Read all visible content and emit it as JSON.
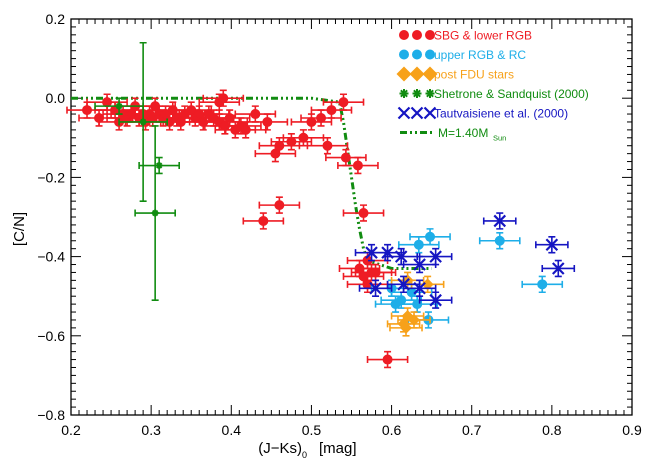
{
  "chart_data": {
    "type": "scatter",
    "title": "",
    "xlabel_main": "(J−Ks)",
    "xlabel_sub": "0",
    "xlabel_unit": "[mag]",
    "ylabel": "[C/N]",
    "xlim": [
      0.2,
      0.9
    ],
    "ylim": [
      -0.8,
      0.2
    ],
    "x_ticks": [
      0.2,
      0.3,
      0.4,
      0.5,
      0.6,
      0.7,
      0.8,
      0.9
    ],
    "y_ticks": [
      -0.8,
      -0.6,
      -0.4,
      -0.2,
      0.0,
      0.2
    ],
    "x_tick_labels": [
      "0.2",
      "0.3",
      "0.4",
      "0.5",
      "0.6",
      "0.7",
      "0.8",
      "0.9"
    ],
    "y_tick_labels": [
      "−0.8",
      "−0.6",
      "−0.4",
      "−0.2",
      "0.0",
      "0.2"
    ],
    "grid": false,
    "legend_position": "top-right",
    "series": [
      {
        "name": "SBG & lower RGB",
        "marker": "circle",
        "color": "#ee1c24",
        "xerr": 0.025,
        "yerr": 0.02,
        "points": [
          [
            0.22,
            -0.03
          ],
          [
            0.235,
            -0.05
          ],
          [
            0.245,
            -0.01
          ],
          [
            0.255,
            -0.03
          ],
          [
            0.26,
            -0.06
          ],
          [
            0.265,
            -0.04
          ],
          [
            0.27,
            -0.05
          ],
          [
            0.275,
            -0.04
          ],
          [
            0.28,
            -0.02
          ],
          [
            0.285,
            -0.05
          ],
          [
            0.29,
            -0.04
          ],
          [
            0.293,
            -0.06
          ],
          [
            0.298,
            -0.04
          ],
          [
            0.302,
            -0.05
          ],
          [
            0.305,
            -0.02
          ],
          [
            0.31,
            -0.04
          ],
          [
            0.315,
            -0.05
          ],
          [
            0.318,
            -0.04
          ],
          [
            0.323,
            -0.06
          ],
          [
            0.327,
            -0.03
          ],
          [
            0.332,
            -0.05
          ],
          [
            0.337,
            -0.06
          ],
          [
            0.342,
            -0.04
          ],
          [
            0.35,
            -0.03
          ],
          [
            0.355,
            -0.05
          ],
          [
            0.36,
            -0.04
          ],
          [
            0.365,
            -0.06
          ],
          [
            0.372,
            -0.04
          ],
          [
            0.378,
            -0.05
          ],
          [
            0.385,
            -0.06
          ],
          [
            0.392,
            -0.07
          ],
          [
            0.398,
            -0.05
          ],
          [
            0.405,
            -0.08
          ],
          [
            0.412,
            -0.07
          ],
          [
            0.418,
            -0.08
          ],
          [
            0.39,
            0.0
          ],
          [
            0.385,
            -0.01
          ],
          [
            0.43,
            -0.04
          ],
          [
            0.445,
            -0.06
          ],
          [
            0.455,
            -0.14
          ],
          [
            0.46,
            -0.12
          ],
          [
            0.475,
            -0.11
          ],
          [
            0.49,
            -0.1
          ],
          [
            0.5,
            -0.06
          ],
          [
            0.512,
            -0.05
          ],
          [
            0.525,
            -0.03
          ],
          [
            0.54,
            -0.01
          ],
          [
            0.52,
            -0.12
          ],
          [
            0.543,
            -0.15
          ],
          [
            0.558,
            -0.17
          ],
          [
            0.46,
            -0.27
          ],
          [
            0.44,
            -0.31
          ],
          [
            0.565,
            -0.29
          ],
          [
            0.57,
            -0.41
          ],
          [
            0.56,
            -0.43
          ],
          [
            0.565,
            -0.45
          ],
          [
            0.575,
            -0.44
          ],
          [
            0.58,
            -0.44
          ],
          [
            0.57,
            -0.47
          ],
          [
            0.595,
            -0.66
          ]
        ]
      },
      {
        "name": "upper RGB & RC",
        "marker": "circle",
        "color": "#1eaee8",
        "xerr": 0.025,
        "yerr": 0.02,
        "points": [
          [
            0.648,
            -0.35
          ],
          [
            0.634,
            -0.37
          ],
          [
            0.6,
            -0.48
          ],
          [
            0.612,
            -0.51
          ],
          [
            0.625,
            -0.49
          ],
          [
            0.632,
            -0.52
          ],
          [
            0.646,
            -0.56
          ],
          [
            0.605,
            -0.52
          ],
          [
            0.735,
            -0.36
          ],
          [
            0.788,
            -0.47
          ]
        ]
      },
      {
        "name": "post FDU stars",
        "marker": "diamond",
        "color": "#f7a11a",
        "xerr": 0.02,
        "yerr": 0.02,
        "points": [
          [
            0.62,
            -0.46
          ],
          [
            0.645,
            -0.47
          ],
          [
            0.62,
            -0.55
          ],
          [
            0.615,
            -0.57
          ],
          [
            0.628,
            -0.56
          ],
          [
            0.618,
            -0.58
          ]
        ]
      },
      {
        "name": "Shetrone & Sandquist (2000)",
        "marker": "star",
        "color": "#118c11",
        "points": [
          [
            0.26,
            -0.02
          ],
          [
            0.29,
            -0.06
          ],
          [
            0.305,
            -0.29
          ],
          [
            0.31,
            -0.17
          ]
        ],
        "xerrs": [
          0.03,
          0.03,
          0.025,
          0.025
        ],
        "yerrs": [
          0.02,
          0.2,
          0.22,
          0.02
        ]
      },
      {
        "name": "Tautvaisiene et al. (2000)",
        "marker": "x",
        "color": "#1515c2",
        "xerr": 0.02,
        "yerr": 0.02,
        "points": [
          [
            0.575,
            -0.39
          ],
          [
            0.595,
            -0.39
          ],
          [
            0.612,
            -0.4
          ],
          [
            0.635,
            -0.42
          ],
          [
            0.655,
            -0.4
          ],
          [
            0.58,
            -0.48
          ],
          [
            0.615,
            -0.47
          ],
          [
            0.635,
            -0.48
          ],
          [
            0.655,
            -0.51
          ],
          [
            0.735,
            -0.31
          ],
          [
            0.8,
            -0.37
          ],
          [
            0.808,
            -0.43
          ]
        ]
      }
    ],
    "model_curve": {
      "name": "M=1.40M",
      "name_sub": "Sun",
      "color": "#118c11",
      "x": [
        0.2,
        0.3,
        0.4,
        0.5,
        0.535,
        0.54,
        0.545,
        0.55,
        0.555,
        0.56,
        0.565,
        0.57,
        0.6,
        0.62,
        0.65
      ],
      "y": [
        0.0,
        0.0,
        0.0,
        0.0,
        -0.01,
        -0.06,
        -0.13,
        -0.2,
        -0.27,
        -0.33,
        -0.38,
        -0.41,
        -0.43,
        -0.43,
        -0.43
      ]
    }
  }
}
